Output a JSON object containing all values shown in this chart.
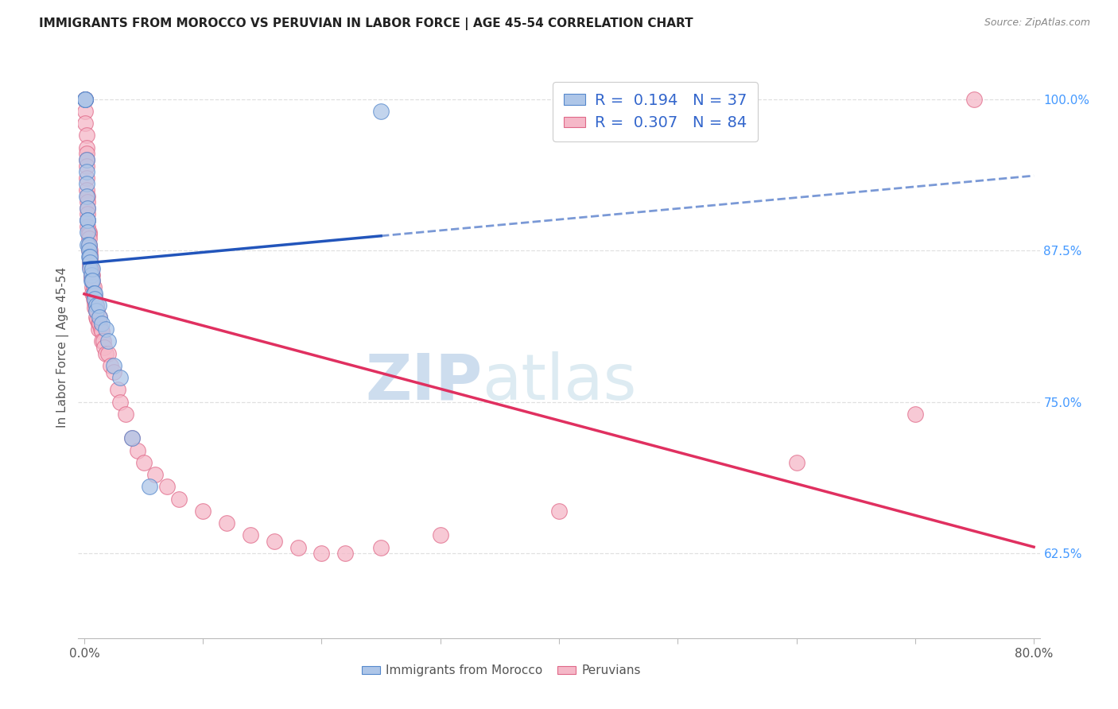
{
  "title": "IMMIGRANTS FROM MOROCCO VS PERUVIAN IN LABOR FORCE | AGE 45-54 CORRELATION CHART",
  "source": "Source: ZipAtlas.com",
  "ylabel": "In Labor Force | Age 45-54",
  "xlim": [
    -0.005,
    0.805
  ],
  "ylim": [
    0.555,
    1.035
  ],
  "x_ticks": [
    0.0,
    0.1,
    0.2,
    0.3,
    0.4,
    0.5,
    0.6,
    0.7,
    0.8
  ],
  "x_tick_labels": [
    "0.0%",
    "",
    "",
    "",
    "",
    "",
    "",
    "",
    "80.0%"
  ],
  "y_ticks": [
    0.625,
    0.75,
    0.875,
    1.0
  ],
  "y_tick_labels": [
    "62.5%",
    "75.0%",
    "87.5%",
    "100.0%"
  ],
  "morocco_R": 0.194,
  "morocco_N": 37,
  "peru_R": 0.307,
  "peru_N": 84,
  "morocco_color": "#aec6e8",
  "morocco_edge": "#5588cc",
  "peru_color": "#f5b8c8",
  "peru_edge": "#e06888",
  "morocco_line_color": "#2255bb",
  "peru_line_color": "#e03060",
  "grid_color": "#e0e0e0",
  "morocco_x": [
    0.001,
    0.001,
    0.001,
    0.002,
    0.002,
    0.002,
    0.002,
    0.003,
    0.003,
    0.003,
    0.003,
    0.003,
    0.004,
    0.004,
    0.004,
    0.005,
    0.005,
    0.005,
    0.006,
    0.006,
    0.007,
    0.007,
    0.008,
    0.009,
    0.009,
    0.01,
    0.01,
    0.012,
    0.013,
    0.015,
    0.018,
    0.02,
    0.025,
    0.03,
    0.04,
    0.055,
    0.25
  ],
  "morocco_y": [
    1.0,
    1.0,
    1.0,
    0.95,
    0.94,
    0.93,
    0.92,
    0.91,
    0.9,
    0.9,
    0.89,
    0.88,
    0.88,
    0.875,
    0.87,
    0.87,
    0.865,
    0.86,
    0.855,
    0.85,
    0.86,
    0.85,
    0.84,
    0.84,
    0.835,
    0.83,
    0.825,
    0.83,
    0.82,
    0.815,
    0.81,
    0.8,
    0.78,
    0.77,
    0.72,
    0.68,
    0.99
  ],
  "peru_x": [
    0.001,
    0.001,
    0.001,
    0.001,
    0.001,
    0.002,
    0.002,
    0.002,
    0.002,
    0.002,
    0.002,
    0.002,
    0.003,
    0.003,
    0.003,
    0.003,
    0.003,
    0.003,
    0.004,
    0.004,
    0.004,
    0.004,
    0.004,
    0.004,
    0.005,
    0.005,
    0.005,
    0.005,
    0.005,
    0.005,
    0.006,
    0.006,
    0.006,
    0.006,
    0.007,
    0.007,
    0.007,
    0.007,
    0.008,
    0.008,
    0.008,
    0.009,
    0.009,
    0.009,
    0.01,
    0.01,
    0.01,
    0.011,
    0.011,
    0.012,
    0.012,
    0.013,
    0.013,
    0.014,
    0.015,
    0.015,
    0.016,
    0.017,
    0.018,
    0.02,
    0.022,
    0.025,
    0.028,
    0.03,
    0.035,
    0.04,
    0.045,
    0.05,
    0.06,
    0.07,
    0.08,
    0.1,
    0.12,
    0.14,
    0.16,
    0.18,
    0.2,
    0.22,
    0.25,
    0.3,
    0.4,
    0.6,
    0.7,
    0.75
  ],
  "peru_y": [
    1.0,
    1.0,
    1.0,
    0.99,
    0.98,
    0.97,
    0.96,
    0.955,
    0.95,
    0.945,
    0.935,
    0.925,
    0.92,
    0.915,
    0.91,
    0.905,
    0.9,
    0.895,
    0.89,
    0.888,
    0.885,
    0.88,
    0.878,
    0.875,
    0.875,
    0.872,
    0.87,
    0.868,
    0.865,
    0.862,
    0.86,
    0.858,
    0.855,
    0.852,
    0.855,
    0.85,
    0.845,
    0.84,
    0.845,
    0.84,
    0.835,
    0.838,
    0.832,
    0.828,
    0.83,
    0.825,
    0.82,
    0.825,
    0.818,
    0.815,
    0.81,
    0.82,
    0.815,
    0.81,
    0.808,
    0.8,
    0.8,
    0.795,
    0.79,
    0.79,
    0.78,
    0.775,
    0.76,
    0.75,
    0.74,
    0.72,
    0.71,
    0.7,
    0.69,
    0.68,
    0.67,
    0.66,
    0.65,
    0.64,
    0.635,
    0.63,
    0.625,
    0.625,
    0.63,
    0.64,
    0.66,
    0.7,
    0.74,
    1.0
  ]
}
